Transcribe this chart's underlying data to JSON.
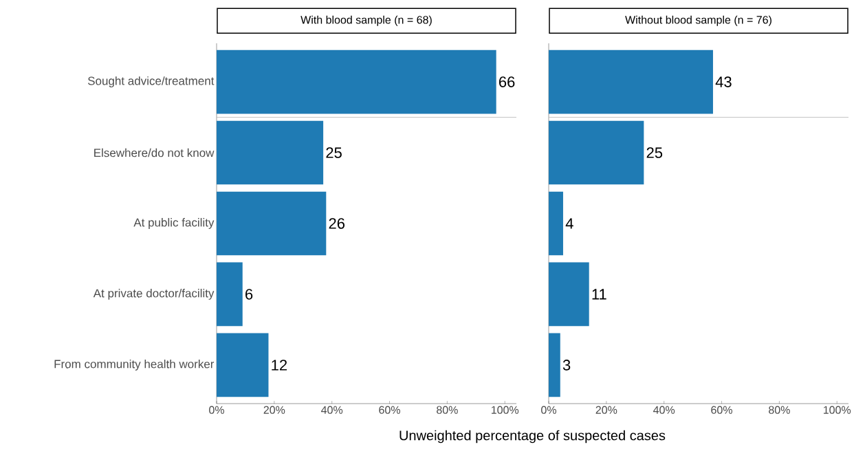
{
  "chart_data": [
    {
      "type": "bar",
      "orientation": "horizontal",
      "title": "With blood sample (n = 68)",
      "xlabel": "Unweighted percentage of suspected cases",
      "categories": [
        "Sought advice/treatment",
        "Elsewhere/do not know",
        "At public facility",
        "At private doctor/facility",
        "From community health worker"
      ],
      "values": [
        97,
        37,
        38,
        9,
        18
      ],
      "color": "#1f7bb4",
      "xlim": [
        0,
        104
      ],
      "xticks": [
        {
          "value": 0,
          "label": "0%"
        },
        {
          "value": 20,
          "label": "20%"
        },
        {
          "value": 40,
          "label": "40%"
        },
        {
          "value": 60,
          "label": "60%"
        },
        {
          "value": 80,
          "label": "80%"
        },
        {
          "value": 100,
          "label": "100%"
        }
      ],
      "annotations": [
        {
          "text": "66",
          "x": 97,
          "y": "Sought advice/treatment"
        },
        {
          "text": "25",
          "x": 37,
          "y": "Elsewhere/do not know"
        },
        {
          "text": "26",
          "x": 38,
          "y": "At public facility"
        },
        {
          "text": "6",
          "x": 9,
          "y": "At private doctor/facility"
        },
        {
          "text": "12",
          "x": 18,
          "y": "From community health worker"
        }
      ]
    },
    {
      "type": "bar",
      "orientation": "horizontal",
      "title": "Without blood sample (n = 76)",
      "categories": [
        "Sought advice/treatment",
        "Elsewhere/do not know",
        "At public facility",
        "At private doctor/facility",
        "From community health worker"
      ],
      "values": [
        57,
        33,
        5,
        14,
        4
      ],
      "color": "#1f7bb4",
      "xlim": [
        0,
        104
      ],
      "xticks": [
        {
          "value": 0,
          "label": "0%"
        },
        {
          "value": 20,
          "label": "20%"
        },
        {
          "value": 40,
          "label": "40%"
        },
        {
          "value": 60,
          "label": "60%"
        },
        {
          "value": 80,
          "label": "80%"
        },
        {
          "value": 100,
          "label": "100%"
        }
      ],
      "annotations": [
        {
          "text": "43",
          "x": 57,
          "y": "Sought advice/treatment"
        },
        {
          "text": "25",
          "x": 33,
          "y": "Elsewhere/do not know"
        },
        {
          "text": "4",
          "x": 5,
          "y": "At public facility"
        },
        {
          "text": "11",
          "x": 14,
          "y": "At private doctor/facility"
        },
        {
          "text": "3",
          "x": 4,
          "y": "From community health worker"
        }
      ],
      "tick_labels": "x"
    }
  ]
}
